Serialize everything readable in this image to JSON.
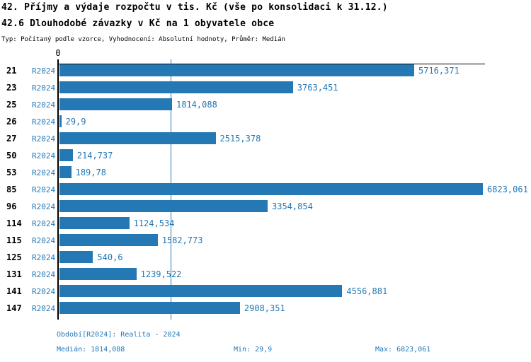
{
  "header": {
    "title": "42. Příjmy a výdaje rozpočtu v tis. Kč (vše po konsolidaci k 31.12.)",
    "subtitle": "42.6 Dlouhodobé závazky v Kč na 1 obyvatele obce",
    "meta": "Typ: Počítaný podle vzorce, Vyhodnocení: Absolutní hodnoty, Průměr: Medián"
  },
  "chart_data": {
    "type": "bar",
    "orientation": "horizontal",
    "title": "42.6 Dlouhodobé závazky v Kč na 1 obyvatele obce",
    "series_period": "R2024",
    "categories": [
      "21",
      "23",
      "25",
      "26",
      "27",
      "50",
      "53",
      "85",
      "96",
      "114",
      "115",
      "125",
      "131",
      "141",
      "147"
    ],
    "values": [
      5716.371,
      3763.451,
      1814.088,
      29.9,
      2515.378,
      214.737,
      189.78,
      6823.061,
      3354.854,
      1124.534,
      1582.773,
      540.6,
      1239.522,
      4556.881,
      2908.351
    ],
    "value_labels": [
      "5716,371",
      "3763,451",
      "1814,088",
      "29,9",
      "2515,378",
      "214,737",
      "189,78",
      "6823,061",
      "3354,854",
      "1124,534",
      "1582,773",
      "540,6",
      "1239,522",
      "4556,881",
      "2908,351"
    ],
    "xlim": [
      0,
      6880
    ],
    "axis_tick_label": "0",
    "median_value": 1814.088,
    "grid": false,
    "legend_position": "none",
    "colors": {
      "bar": "#2478b4",
      "axis": "#000000",
      "median_line": "#2478b4",
      "value_text": "#2478b4",
      "title_text": "#000000"
    }
  },
  "footer": {
    "period_info": "Období[R2024]: Realita - 2024",
    "median": "Medián: 1814,088",
    "min": "Min: 29,9",
    "max": "Max: 6823,061"
  }
}
